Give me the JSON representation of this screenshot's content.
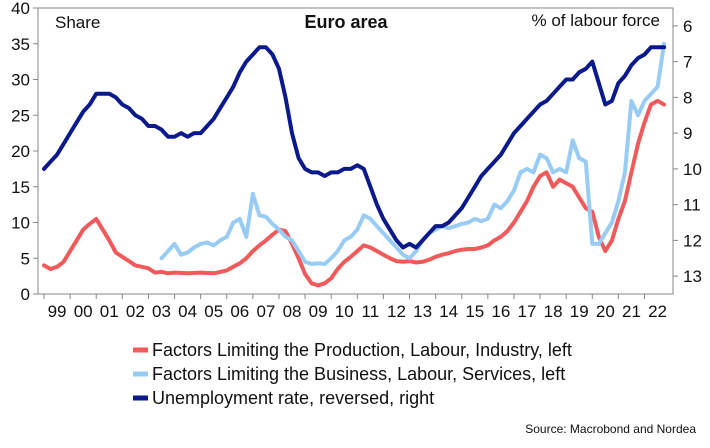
{
  "chart_data": {
    "type": "line",
    "title": "Euro area",
    "left_axis_label": "Share",
    "right_axis_label": "% of labour force",
    "source": "Source: Macrobond and Nordea",
    "x_tick_labels": [
      "99",
      "00",
      "01",
      "02",
      "03",
      "04",
      "05",
      "06",
      "07",
      "08",
      "09",
      "10",
      "11",
      "12",
      "13",
      "14",
      "15",
      "16",
      "17",
      "18",
      "19",
      "20",
      "21",
      "22"
    ],
    "x_range": [
      1999.0,
      2022.9
    ],
    "y_left": {
      "range": [
        0,
        40
      ],
      "ticks": [
        0,
        5,
        10,
        15,
        20,
        25,
        30,
        35,
        40
      ]
    },
    "y_right": {
      "range": [
        13.5,
        5.5
      ],
      "reversed": true,
      "ticks": [
        6,
        7,
        8,
        9,
        10,
        11,
        12,
        13
      ]
    },
    "grid": false,
    "legend_position": "bottom",
    "series": [
      {
        "name": "Factors Limiting the Production, Labour, Industry, left",
        "color": "#f05a5a",
        "axis": "left",
        "x": [
          1999.0,
          1999.25,
          1999.5,
          1999.75,
          2000.0,
          2000.25,
          2000.5,
          2000.75,
          2001.0,
          2001.25,
          2001.5,
          2001.75,
          2002.0,
          2002.25,
          2002.5,
          2002.75,
          2003.0,
          2003.25,
          2003.5,
          2003.75,
          2004.0,
          2004.5,
          2005.0,
          2005.5,
          2006.0,
          2006.25,
          2006.5,
          2006.75,
          2007.0,
          2007.25,
          2007.5,
          2007.75,
          2008.0,
          2008.25,
          2008.5,
          2008.75,
          2009.0,
          2009.25,
          2009.5,
          2009.75,
          2010.0,
          2010.25,
          2010.5,
          2010.75,
          2011.0,
          2011.25,
          2011.5,
          2011.75,
          2012.0,
          2012.25,
          2012.5,
          2012.75,
          2013.0,
          2013.25,
          2013.5,
          2013.75,
          2014.0,
          2014.25,
          2014.5,
          2014.75,
          2015.0,
          2015.25,
          2015.5,
          2015.75,
          2016.0,
          2016.25,
          2016.5,
          2016.75,
          2017.0,
          2017.25,
          2017.5,
          2017.75,
          2018.0,
          2018.25,
          2018.5,
          2018.75,
          2019.0,
          2019.25,
          2019.5,
          2019.75,
          2020.0,
          2020.25,
          2020.5,
          2020.75,
          2021.0,
          2021.25,
          2021.5,
          2021.75,
          2022.0,
          2022.25,
          2022.5,
          2022.75
        ],
        "values": [
          4.0,
          3.5,
          3.8,
          4.5,
          6.0,
          7.5,
          9.0,
          9.8,
          10.5,
          9.0,
          7.5,
          5.8,
          5.2,
          4.6,
          4.0,
          3.8,
          3.6,
          3.0,
          3.1,
          2.9,
          3.0,
          2.9,
          3.0,
          2.9,
          3.3,
          3.8,
          4.3,
          5.0,
          6.0,
          6.8,
          7.5,
          8.3,
          9.0,
          8.8,
          7.0,
          5.0,
          2.8,
          1.5,
          1.2,
          1.5,
          2.2,
          3.5,
          4.5,
          5.2,
          6.0,
          6.8,
          6.5,
          6.0,
          5.5,
          5.0,
          4.6,
          4.5,
          4.6,
          4.4,
          4.5,
          4.8,
          5.2,
          5.5,
          5.7,
          6.0,
          6.2,
          6.3,
          6.3,
          6.5,
          6.8,
          7.5,
          8.0,
          8.8,
          10.0,
          11.5,
          13.0,
          15.0,
          16.5,
          17.0,
          15.0,
          16.0,
          15.5,
          15.0,
          13.5,
          12.0,
          11.5,
          8.0,
          6.0,
          7.5,
          10.5,
          13.0,
          17.0,
          21.0,
          24.0,
          26.5,
          27.0,
          26.5
        ]
      },
      {
        "name": "Factors Limiting the Business, Labour, Services, left",
        "color": "#99ccf5",
        "axis": "left",
        "x": [
          2003.5,
          2003.75,
          2004.0,
          2004.25,
          2004.5,
          2004.75,
          2005.0,
          2005.25,
          2005.5,
          2005.75,
          2006.0,
          2006.25,
          2006.5,
          2006.75,
          2007.0,
          2007.25,
          2007.5,
          2007.75,
          2008.0,
          2008.25,
          2008.5,
          2008.75,
          2009.0,
          2009.25,
          2009.5,
          2009.75,
          2010.0,
          2010.25,
          2010.5,
          2010.75,
          2011.0,
          2011.25,
          2011.5,
          2011.75,
          2012.0,
          2012.25,
          2012.5,
          2012.75,
          2013.0,
          2013.25,
          2013.5,
          2013.75,
          2014.0,
          2014.25,
          2014.5,
          2014.75,
          2015.0,
          2015.25,
          2015.5,
          2015.75,
          2016.0,
          2016.25,
          2016.5,
          2016.75,
          2017.0,
          2017.25,
          2017.5,
          2017.75,
          2018.0,
          2018.25,
          2018.5,
          2018.75,
          2019.0,
          2019.25,
          2019.5,
          2019.75,
          2020.0,
          2020.25,
          2020.5,
          2020.75,
          2021.0,
          2021.25,
          2021.5,
          2021.75,
          2022.0,
          2022.25,
          2022.5,
          2022.75
        ],
        "values": [
          5.0,
          6.0,
          7.0,
          5.5,
          5.8,
          6.5,
          7.0,
          7.2,
          6.8,
          7.5,
          8.0,
          10.0,
          10.5,
          8.0,
          14.0,
          11.0,
          10.8,
          9.8,
          9.0,
          8.0,
          7.5,
          6.0,
          4.5,
          4.2,
          4.3,
          4.2,
          5.0,
          6.0,
          7.5,
          8.0,
          9.0,
          11.0,
          10.5,
          9.5,
          8.5,
          7.5,
          6.5,
          5.5,
          5.0,
          6.0,
          7.5,
          8.5,
          9.0,
          9.5,
          9.2,
          9.5,
          9.8,
          10.0,
          10.5,
          10.2,
          10.5,
          12.5,
          12.0,
          13.0,
          14.5,
          17.0,
          17.5,
          17.0,
          19.5,
          19.0,
          17.0,
          17.5,
          17.0,
          21.5,
          19.0,
          18.5,
          7.0,
          7.0,
          8.5,
          10.0,
          13.0,
          17.0,
          27.0,
          25.0,
          27.0,
          28.0,
          29.0,
          35.0
        ]
      },
      {
        "name": "Unemployment rate, reversed, right",
        "color": "#0a1a8c",
        "axis": "right",
        "x": [
          1999.0,
          1999.25,
          1999.5,
          1999.75,
          2000.0,
          2000.25,
          2000.5,
          2000.75,
          2001.0,
          2001.25,
          2001.5,
          2001.75,
          2002.0,
          2002.25,
          2002.5,
          2002.75,
          2003.0,
          2003.25,
          2003.5,
          2003.75,
          2004.0,
          2004.25,
          2004.5,
          2004.75,
          2005.0,
          2005.25,
          2005.5,
          2005.75,
          2006.0,
          2006.25,
          2006.5,
          2006.75,
          2007.0,
          2007.25,
          2007.5,
          2007.75,
          2008.0,
          2008.25,
          2008.5,
          2008.75,
          2009.0,
          2009.25,
          2009.5,
          2009.75,
          2010.0,
          2010.25,
          2010.5,
          2010.75,
          2011.0,
          2011.25,
          2011.5,
          2011.75,
          2012.0,
          2012.25,
          2012.5,
          2012.75,
          2013.0,
          2013.25,
          2013.5,
          2013.75,
          2014.0,
          2014.25,
          2014.5,
          2014.75,
          2015.0,
          2015.25,
          2015.5,
          2015.75,
          2016.0,
          2016.25,
          2016.5,
          2016.75,
          2017.0,
          2017.25,
          2017.5,
          2017.75,
          2018.0,
          2018.25,
          2018.5,
          2018.75,
          2019.0,
          2019.25,
          2019.5,
          2019.75,
          2020.0,
          2020.25,
          2020.5,
          2020.75,
          2021.0,
          2021.25,
          2021.5,
          2021.75,
          2022.0,
          2022.25,
          2022.5,
          2022.75
        ],
        "values": [
          10.0,
          9.8,
          9.6,
          9.3,
          9.0,
          8.7,
          8.4,
          8.2,
          7.9,
          7.9,
          7.9,
          8.0,
          8.2,
          8.3,
          8.5,
          8.6,
          8.8,
          8.8,
          8.9,
          9.1,
          9.1,
          9.0,
          9.1,
          9.0,
          9.0,
          8.8,
          8.6,
          8.3,
          8.0,
          7.7,
          7.3,
          7.0,
          6.8,
          6.6,
          6.6,
          6.8,
          7.2,
          8.0,
          9.0,
          9.7,
          10.0,
          10.1,
          10.1,
          10.2,
          10.1,
          10.1,
          10.0,
          10.0,
          9.9,
          10.0,
          10.5,
          11.0,
          11.4,
          11.7,
          12.0,
          12.2,
          12.1,
          12.2,
          12.0,
          11.8,
          11.6,
          11.6,
          11.5,
          11.3,
          11.1,
          10.8,
          10.5,
          10.2,
          10.0,
          9.8,
          9.6,
          9.3,
          9.0,
          8.8,
          8.6,
          8.4,
          8.2,
          8.1,
          7.9,
          7.7,
          7.5,
          7.5,
          7.3,
          7.2,
          7.0,
          7.6,
          8.2,
          8.1,
          7.6,
          7.4,
          7.1,
          6.9,
          6.8,
          6.6,
          6.6,
          6.6
        ]
      }
    ]
  }
}
